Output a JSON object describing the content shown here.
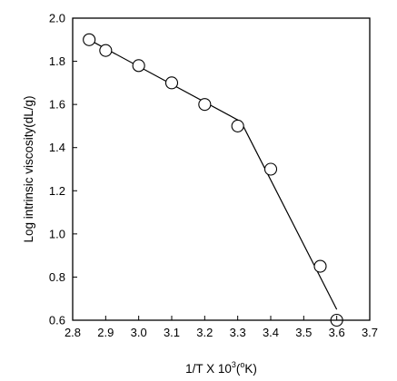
{
  "chart_data": {
    "type": "scatter",
    "title": "",
    "xlabel": {
      "main": "1/T X 10",
      "sup1": "3",
      "mid": "(",
      "sup2": "o",
      "end": "K)"
    },
    "ylabel": "Log  intrinsic viscosity(dL/g)",
    "xlim": [
      2.8,
      3.7
    ],
    "ylim": [
      0.6,
      2.0
    ],
    "x_ticks": [
      "2.8",
      "2.9",
      "3.0",
      "3.1",
      "3.2",
      "3.3",
      "3.4",
      "3.5",
      "3.6",
      "3.7"
    ],
    "y_ticks": [
      "0.6",
      "0.8",
      "1.0",
      "1.2",
      "1.4",
      "1.6",
      "1.8",
      "2.0"
    ],
    "grid": false,
    "series": [
      {
        "marker": "open-circle",
        "x": [
          2.85,
          2.9,
          3.0,
          3.1,
          3.2,
          3.3,
          3.4,
          3.55,
          3.6
        ],
        "y": [
          1.9,
          1.85,
          1.78,
          1.7,
          1.6,
          1.5,
          1.3,
          0.85,
          0.6
        ]
      }
    ],
    "fit_lines": [
      {
        "x": [
          2.85,
          3.31
        ],
        "y": [
          1.9,
          1.52
        ]
      },
      {
        "x": [
          3.31,
          3.6
        ],
        "y": [
          1.52,
          0.65
        ]
      }
    ]
  }
}
